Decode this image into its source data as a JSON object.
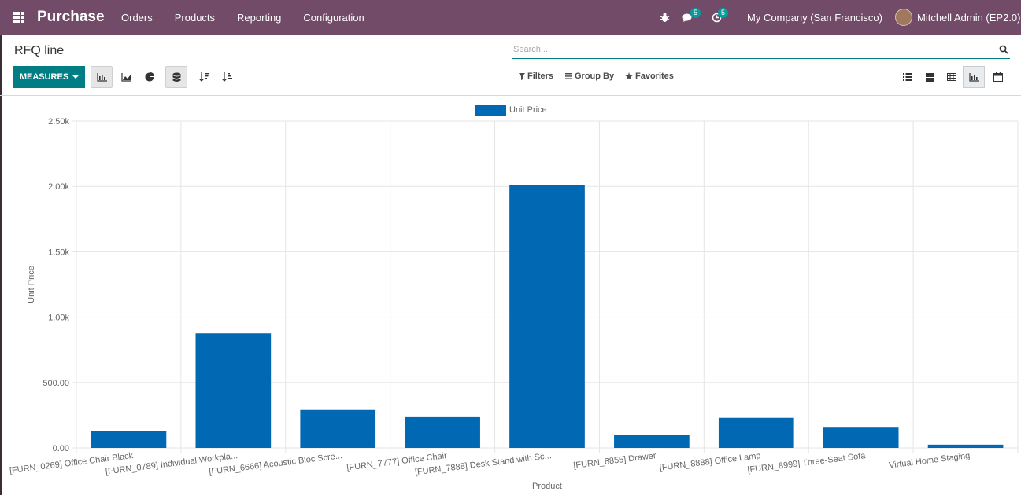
{
  "navbar": {
    "app_name": "Purchase",
    "menu": [
      "Orders",
      "Products",
      "Reporting",
      "Configuration"
    ],
    "messages_count": "5",
    "activities_count": "5",
    "company": "My Company (San Francisco)",
    "user": "Mitchell Admin (EP2.0)"
  },
  "control": {
    "title": "RFQ line",
    "search_placeholder": "Search...",
    "measures_label": "MEASURES",
    "filters_label": "Filters",
    "groupby_label": "Group By",
    "favorites_label": "Favorites"
  },
  "colors": {
    "navbar": "#714b67",
    "accent": "#017e84",
    "bar": "#0169b3"
  },
  "chart_data": {
    "type": "bar",
    "legend": "Unit Price",
    "legend_position": "top-center",
    "ylabel": "Unit Price",
    "xlabel": "Product",
    "ylim": [
      0,
      2500
    ],
    "yticks": [
      0,
      500,
      1000,
      1500,
      2000,
      2500
    ],
    "ytick_labels": [
      "0.00",
      "500.00",
      "1.00k",
      "1.50k",
      "2.00k",
      "2.50k"
    ],
    "grid": true,
    "categories": [
      "[FURN_0269] Office Chair Black",
      "[FURN_0789] Individual Workpla...",
      "[FURN_6666] Acoustic Bloc Scre...",
      "[FURN_7777] Office Chair",
      "[FURN_7888] Desk Stand with Sc...",
      "[FURN_8855] Drawer",
      "[FURN_8888] Office Lamp",
      "[FURN_8999] Three-Seat Sofa",
      "Virtual Home Staging"
    ],
    "values": [
      130,
      876,
      290,
      235,
      2010,
      100,
      230,
      155,
      25
    ]
  }
}
